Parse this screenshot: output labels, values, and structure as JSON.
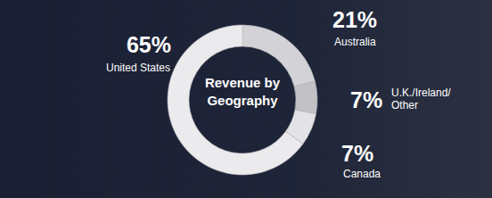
{
  "chart_data": {
    "type": "pie",
    "title": "Revenue by Geography",
    "categories": [
      "Australia",
      "U.K./Ireland/Other",
      "Canada",
      "United States"
    ],
    "values": [
      21,
      7,
      7,
      65
    ],
    "value_labels": [
      "21%",
      "7%",
      "7%",
      "65%"
    ],
    "colors": [
      "#d3d3d7",
      "#c1c1c6",
      "#e3e3e6",
      "#ebebed"
    ],
    "data_labels": true
  }
}
